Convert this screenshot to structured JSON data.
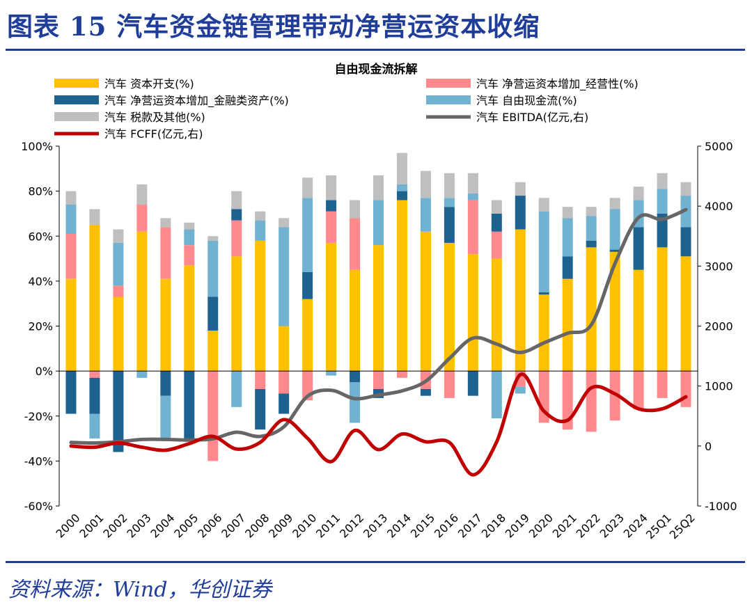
{
  "header": {
    "title": "图表 15  汽车资金链管理带动净营运资本收缩"
  },
  "source": {
    "text": "资料来源：Wind，华创证券"
  },
  "colors": {
    "brand": "#1f3d99",
    "capex": "#ffc000",
    "nwc_operating": "#ff8a8e",
    "nwc_financial": "#1e6390",
    "fcf": "#70b2d0",
    "tax": "#bfbfbf",
    "ebitda": "#666666",
    "fcff": "#c00000"
  },
  "chart_data": {
    "type": "bar",
    "title": "自由现金流拆解",
    "categories": [
      "2000",
      "2001",
      "2002",
      "2003",
      "2004",
      "2005",
      "2006",
      "2007",
      "2008",
      "2009",
      "2010",
      "2011",
      "2012",
      "2013",
      "2014",
      "2015",
      "2016",
      "2017",
      "2018",
      "2019",
      "2020",
      "2021",
      "2022",
      "2023",
      "2024",
      "25Q1",
      "25Q2"
    ],
    "y_left": {
      "ticks": [
        "100%",
        "80%",
        "60%",
        "40%",
        "20%",
        "0%",
        "-20%",
        "-40%",
        "-60%"
      ],
      "ylim": [
        -60,
        100
      ],
      "unit": "%"
    },
    "y_right": {
      "ticks": [
        "5000",
        "4000",
        "3000",
        "2000",
        "1000",
        "0",
        "-1000"
      ],
      "ylim": [
        -1000,
        5000
      ],
      "unit": "亿元"
    },
    "legend": {
      "capex": "汽车 资本开支(%)",
      "nwc_operating": "汽车 净营运资本增加_经营性(%)",
      "nwc_financial": "汽车 净营运资本增加_金融类资产(%)",
      "fcf": "汽车 自由现金流(%)",
      "tax": "汽车 税款及其他(%)",
      "ebitda": "汽车 EBITDA(亿元,右)",
      "fcff": "汽车 FCFF(亿元,右)"
    },
    "series": [
      {
        "name": "汽车 资本开支(%)",
        "key": "capex",
        "values": [
          41,
          65,
          33,
          62,
          41,
          47,
          18,
          51,
          58,
          20,
          32,
          57,
          45,
          56,
          76,
          62,
          57,
          52,
          50,
          63,
          34,
          41,
          55,
          53,
          45,
          55,
          51
        ]
      },
      {
        "name": "汽车 净营运资本增加_经营性(%)",
        "key": "nwc_operating",
        "values": [
          20,
          -3,
          5,
          12,
          23,
          9,
          -40,
          16,
          -8,
          -10,
          -13,
          14,
          23,
          -8,
          -3,
          -8,
          -12,
          24,
          12,
          -7,
          -23,
          -26,
          -27,
          -22,
          -17,
          -12,
          -16
        ]
      },
      {
        "name": "汽车 净营运资本增加_金融类资产(%)",
        "key": "nwc_financial",
        "values": [
          -19,
          -16,
          -36,
          0,
          -11,
          -30,
          15,
          5,
          -18,
          -9,
          12,
          5,
          -5,
          -4,
          4,
          -3,
          16,
          -11,
          8,
          15,
          1,
          10,
          3,
          1,
          19,
          15,
          13
        ]
      },
      {
        "name": "汽车 自由现金流(%)",
        "key": "fcf",
        "values": [
          13,
          -11,
          19,
          -3,
          -20,
          7,
          25,
          -16,
          9,
          44,
          33,
          -2,
          -18,
          20,
          3,
          15,
          4,
          3,
          -21,
          -3,
          36,
          17,
          11,
          18,
          12,
          11,
          14
        ]
      },
      {
        "name": "汽车 税款及其他(%)",
        "key": "tax",
        "values": [
          6,
          7,
          6,
          9,
          4,
          3,
          2,
          8,
          4,
          4,
          9,
          11,
          8,
          11,
          14,
          12,
          11,
          9,
          6,
          6,
          6,
          5,
          4,
          5,
          6,
          7,
          6
        ]
      },
      {
        "name": "汽车 EBITDA(亿元,右)",
        "key": "ebitda",
        "axis": "right",
        "values": [
          60,
          50,
          70,
          110,
          110,
          100,
          120,
          230,
          160,
          320,
          830,
          930,
          790,
          850,
          920,
          1080,
          1460,
          1800,
          1700,
          1560,
          1720,
          1880,
          2020,
          3040,
          3810,
          3780,
          3940
        ]
      },
      {
        "name": "汽车 FCFF(亿元,右)",
        "key": "fcff",
        "axis": "right",
        "values": [
          0,
          -20,
          50,
          -20,
          -70,
          40,
          160,
          -50,
          60,
          440,
          130,
          -260,
          260,
          -60,
          200,
          70,
          60,
          -480,
          70,
          1190,
          580,
          430,
          970,
          870,
          620,
          620,
          820
        ]
      }
    ],
    "legend_position": "top"
  }
}
